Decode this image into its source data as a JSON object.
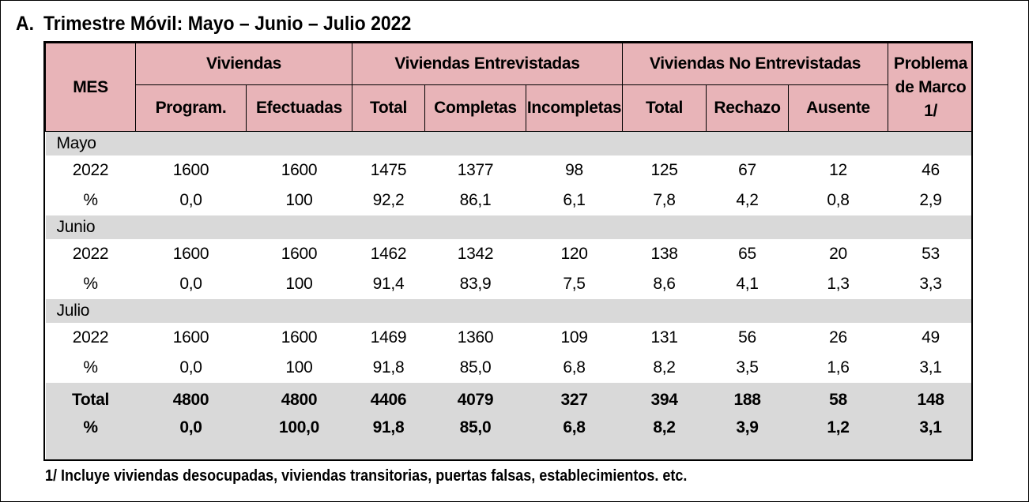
{
  "title": {
    "label": "A.",
    "prefix": "Trimestre Móvil: ",
    "period": "Mayo – Junio – Julio 2022"
  },
  "table": {
    "headers": {
      "mes": "MES",
      "viviendas": "Viviendas",
      "entrevistadas": "Viviendas Entrevistadas",
      "no_entrevistadas": "Viviendas No Entrevistadas",
      "problema_marco": "Problema de Marco 1/",
      "sub": [
        "Program.",
        "Efectuadas",
        "Total",
        "Completas",
        "Incompletas",
        "Total",
        "Rechazo",
        "Ausente"
      ]
    },
    "months": [
      {
        "name": "Mayo",
        "year_label": "2022",
        "year_values": [
          "1600",
          "1600",
          "1475",
          "1377",
          "98",
          "125",
          "67",
          "12",
          "46"
        ],
        "pct_label": "%",
        "pct_values": [
          "0,0",
          "100",
          "92,2",
          "86,1",
          "6,1",
          "7,8",
          "4,2",
          "0,8",
          "2,9"
        ]
      },
      {
        "name": "Junio",
        "year_label": "2022",
        "year_values": [
          "1600",
          "1600",
          "1462",
          "1342",
          "120",
          "138",
          "65",
          "20",
          "53"
        ],
        "pct_label": "%",
        "pct_values": [
          "0,0",
          "100",
          "91,4",
          "83,9",
          "7,5",
          "8,6",
          "4,1",
          "1,3",
          "3,3"
        ]
      },
      {
        "name": "Julio",
        "year_label": "2022",
        "year_values": [
          "1600",
          "1600",
          "1469",
          "1360",
          "109",
          "131",
          "56",
          "26",
          "49"
        ],
        "pct_label": "%",
        "pct_values": [
          "0,0",
          "100",
          "91,8",
          "85,0",
          "6,8",
          "8,2",
          "3,5",
          "1,6",
          "3,1"
        ]
      }
    ],
    "total": {
      "label": "Total",
      "values": [
        "4800",
        "4800",
        "4406",
        "4079",
        "327",
        "394",
        "188",
        "58",
        "148"
      ],
      "pct_label": "%",
      "pct_values": [
        "0,0",
        "100,0",
        "91,8",
        "85,0",
        "6,8",
        "8,2",
        "3,9",
        "1,2",
        "3,1"
      ]
    }
  },
  "footnote": "1/ Incluye viviendas desocupadas, viviendas transitorias, puertas falsas, establecimientos. etc.",
  "colors": {
    "header_bg": "#e8b4b8",
    "band_bg": "#d9d9d9"
  }
}
